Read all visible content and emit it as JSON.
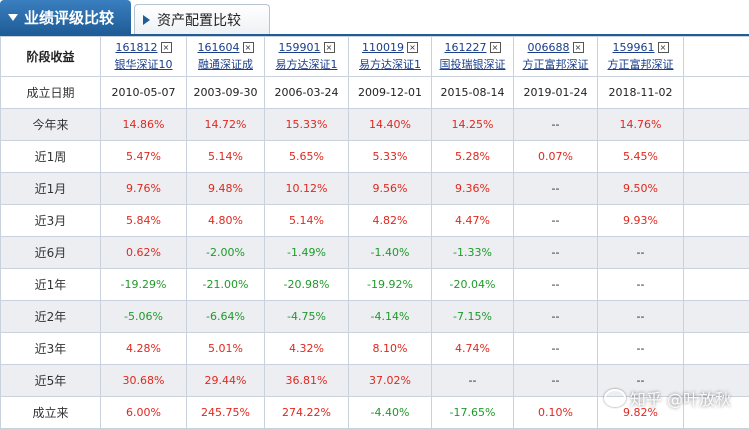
{
  "tabs": {
    "active": "业绩评级比较",
    "inactive": "资产配置比较"
  },
  "table": {
    "corner": "阶段收益",
    "funds": [
      {
        "code": "161812",
        "name": "银华深证10"
      },
      {
        "code": "161604",
        "name": "融通深证成"
      },
      {
        "code": "159901",
        "name": "易方达深证1"
      },
      {
        "code": "110019",
        "name": "易方达深证1"
      },
      {
        "code": "161227",
        "name": "国投瑞银深证"
      },
      {
        "code": "006688",
        "name": "方正富邦深证"
      },
      {
        "code": "159961",
        "name": "方正富邦深证"
      }
    ],
    "close_glyph": "×",
    "rows": [
      {
        "label": "成立日期",
        "values": [
          "2010-05-07",
          "2003-09-30",
          "2006-03-24",
          "2009-12-01",
          "2015-08-14",
          "2019-01-24",
          "2018-11-02"
        ]
      },
      {
        "label": "今年来",
        "values": [
          "14.86%",
          "14.72%",
          "15.33%",
          "14.40%",
          "14.25%",
          "--",
          "14.76%"
        ]
      },
      {
        "label": "近1周",
        "values": [
          "5.47%",
          "5.14%",
          "5.65%",
          "5.33%",
          "5.28%",
          "0.07%",
          "5.45%"
        ]
      },
      {
        "label": "近1月",
        "values": [
          "9.76%",
          "9.48%",
          "10.12%",
          "9.56%",
          "9.36%",
          "--",
          "9.50%"
        ]
      },
      {
        "label": "近3月",
        "values": [
          "5.84%",
          "4.80%",
          "5.14%",
          "4.82%",
          "4.47%",
          "--",
          "9.93%"
        ]
      },
      {
        "label": "近6月",
        "values": [
          "0.62%",
          "-2.00%",
          "-1.49%",
          "-1.40%",
          "-1.33%",
          "--",
          "--"
        ]
      },
      {
        "label": "近1年",
        "values": [
          "-19.29%",
          "-21.00%",
          "-20.98%",
          "-19.92%",
          "-20.04%",
          "--",
          "--"
        ]
      },
      {
        "label": "近2年",
        "values": [
          "-5.06%",
          "-6.64%",
          "-4.75%",
          "-4.14%",
          "-7.15%",
          "--",
          "--"
        ]
      },
      {
        "label": "近3年",
        "values": [
          "4.28%",
          "5.01%",
          "4.32%",
          "8.10%",
          "4.74%",
          "--",
          "--"
        ]
      },
      {
        "label": "近5年",
        "values": [
          "30.68%",
          "29.44%",
          "36.81%",
          "37.02%",
          "--",
          "--",
          "--"
        ]
      },
      {
        "label": "成立来",
        "values": [
          "6.00%",
          "245.75%",
          "274.22%",
          "-4.40%",
          "-17.65%",
          "0.10%",
          "9.82%"
        ]
      }
    ]
  },
  "colors": {
    "positive": "#e0281e",
    "negative": "#1f9a2a",
    "tab_active_bg": "#1f5d97"
  },
  "watermark": "知乎 @叶放秋"
}
